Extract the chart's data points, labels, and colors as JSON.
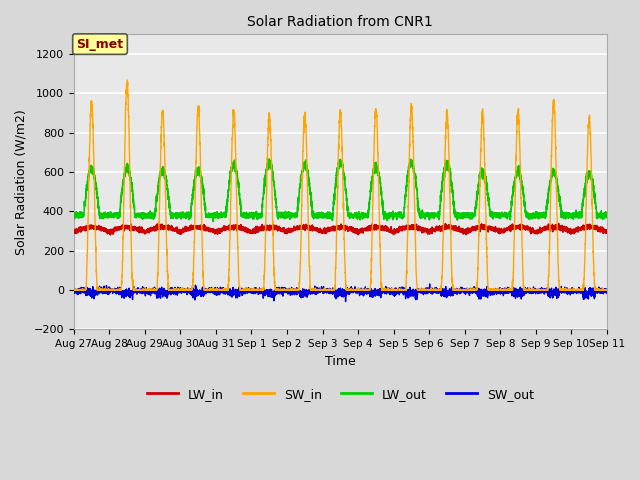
{
  "title": "Solar Radiation from CNR1",
  "xlabel": "Time",
  "ylabel": "Solar Radiation (W/m2)",
  "ylim": [
    -200,
    1300
  ],
  "yticks": [
    -200,
    0,
    200,
    400,
    600,
    800,
    1000,
    1200
  ],
  "fig_bg_color": "#d8d8d8",
  "plot_bg_color": "#e8e8e8",
  "band_bg_color": "#dcdcdc",
  "grid_color": "#f5f5f5",
  "annotation_text": "SI_met",
  "annotation_box_color": "#ffff99",
  "annotation_border_color": "#8b0000",
  "line_colors": {
    "LW_in": "#cc0000",
    "SW_in": "#ffa500",
    "LW_out": "#00cc00",
    "SW_out": "#0000dd"
  },
  "n_days": 15,
  "x_start": 0,
  "x_end": 15,
  "x_tick_labels": [
    "Aug 27",
    "Aug 28",
    "Aug 29",
    "Aug 30",
    "Aug 31",
    "Sep 1",
    "Sep 2",
    "Sep 3",
    "Sep 4",
    "Sep 5",
    "Sep 6",
    "Sep 7",
    "Sep 8",
    "Sep 9",
    "Sep 10",
    "Sep 11"
  ],
  "x_tick_positions": [
    0,
    1,
    2,
    3,
    4,
    5,
    6,
    7,
    8,
    9,
    10,
    11,
    12,
    13,
    14,
    15
  ]
}
